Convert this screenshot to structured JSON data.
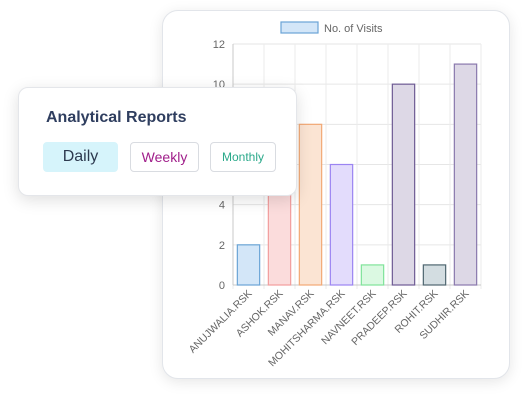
{
  "report": {
    "title": "Analytical Reports",
    "buttons": {
      "daily": "Daily",
      "weekly": "Weekly",
      "monthly": "Monthly"
    }
  },
  "chart_data": {
    "type": "bar",
    "legend": [
      "No. of Visits"
    ],
    "legend_position": "top-center",
    "categories": [
      "ANUJWALIA.RSK",
      "ASHOK.RSK",
      "MANAV.RSK",
      "MOHITSHARMA.RSK",
      "NAVNEET.RSK",
      "PRADEEP.RSK",
      "ROHIT.RSK",
      "SUDHIR.RSK"
    ],
    "series": [
      {
        "name": "No. of Visits",
        "values": [
          2,
          6,
          8,
          6,
          1,
          10,
          1,
          11
        ]
      }
    ],
    "yticks": [
      0,
      2,
      4,
      6,
      8,
      10,
      12
    ],
    "ylim": [
      0,
      12
    ],
    "grid": true,
    "colors": {
      "fill": [
        "#d3e6f8",
        "#fbdcdc",
        "#fbe4d3",
        "#e3dcfc",
        "#dbf9e2",
        "#ddd8e6",
        "#d3dde1",
        "#ddd8e6"
      ],
      "stroke": [
        "#6aa4d6",
        "#f29c9c",
        "#f2a875",
        "#9b84f2",
        "#7fe39a",
        "#6e5a94",
        "#4f6670",
        "#8a78ad"
      ],
      "legend_fill": "#d3e6f8",
      "legend_stroke": "#6aa4d6"
    }
  }
}
